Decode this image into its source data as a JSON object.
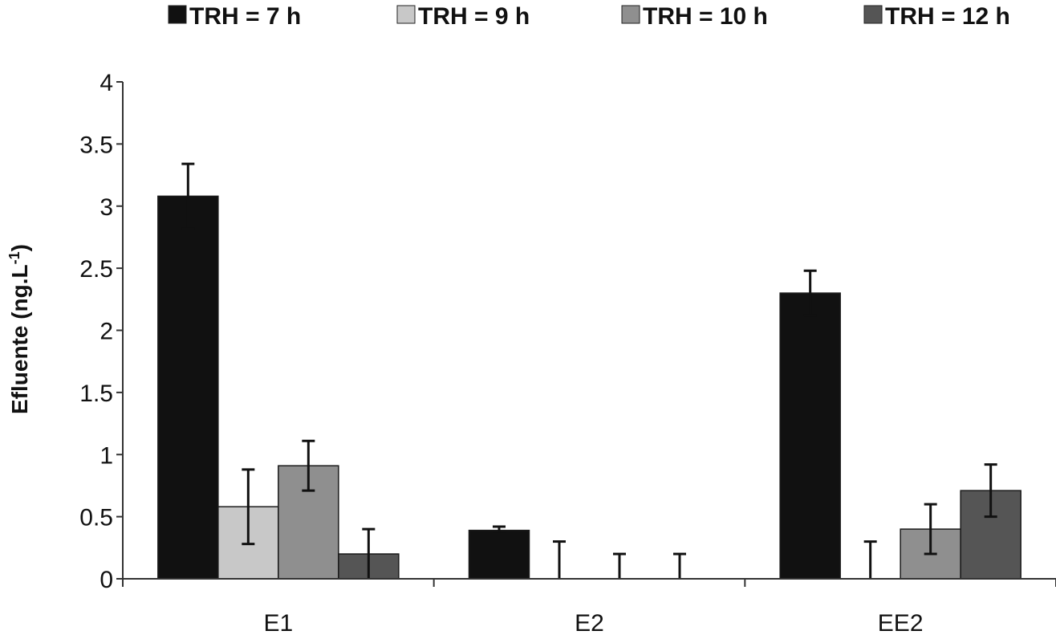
{
  "chart_data": {
    "type": "bar",
    "title": "",
    "xlabel": "",
    "ylabel": "Efluente (ng.L",
    "ylabel_sup": "-1",
    "ylabel_close": ")",
    "ylim": [
      0,
      4
    ],
    "yticks": [
      "0",
      "0.5",
      "1",
      "1.5",
      "2",
      "2.5",
      "3",
      "3.5",
      "4"
    ],
    "grid": false,
    "legend_position": "top",
    "categories": [
      "E1",
      "E2",
      "EE2"
    ],
    "series": [
      {
        "name": "TRH = 7 h",
        "color": "#111111",
        "values": [
          3.08,
          0.39,
          2.3
        ],
        "errors": [
          0.26,
          0.03,
          0.18
        ]
      },
      {
        "name": "TRH = 9 h",
        "color": "#c8c8c8",
        "values": [
          0.58,
          0,
          0
        ],
        "errors": [
          0.3,
          0.3,
          0.3
        ]
      },
      {
        "name": "TRH = 10 h",
        "color": "#8f8f8f",
        "values": [
          0.91,
          0,
          0.4
        ],
        "errors": [
          0.2,
          0.2,
          0.2
        ]
      },
      {
        "name": "TRH = 12 h",
        "color": "#555555",
        "values": [
          0.2,
          0,
          0.71
        ],
        "errors": [
          0.2,
          0.2,
          0.21
        ]
      }
    ]
  }
}
